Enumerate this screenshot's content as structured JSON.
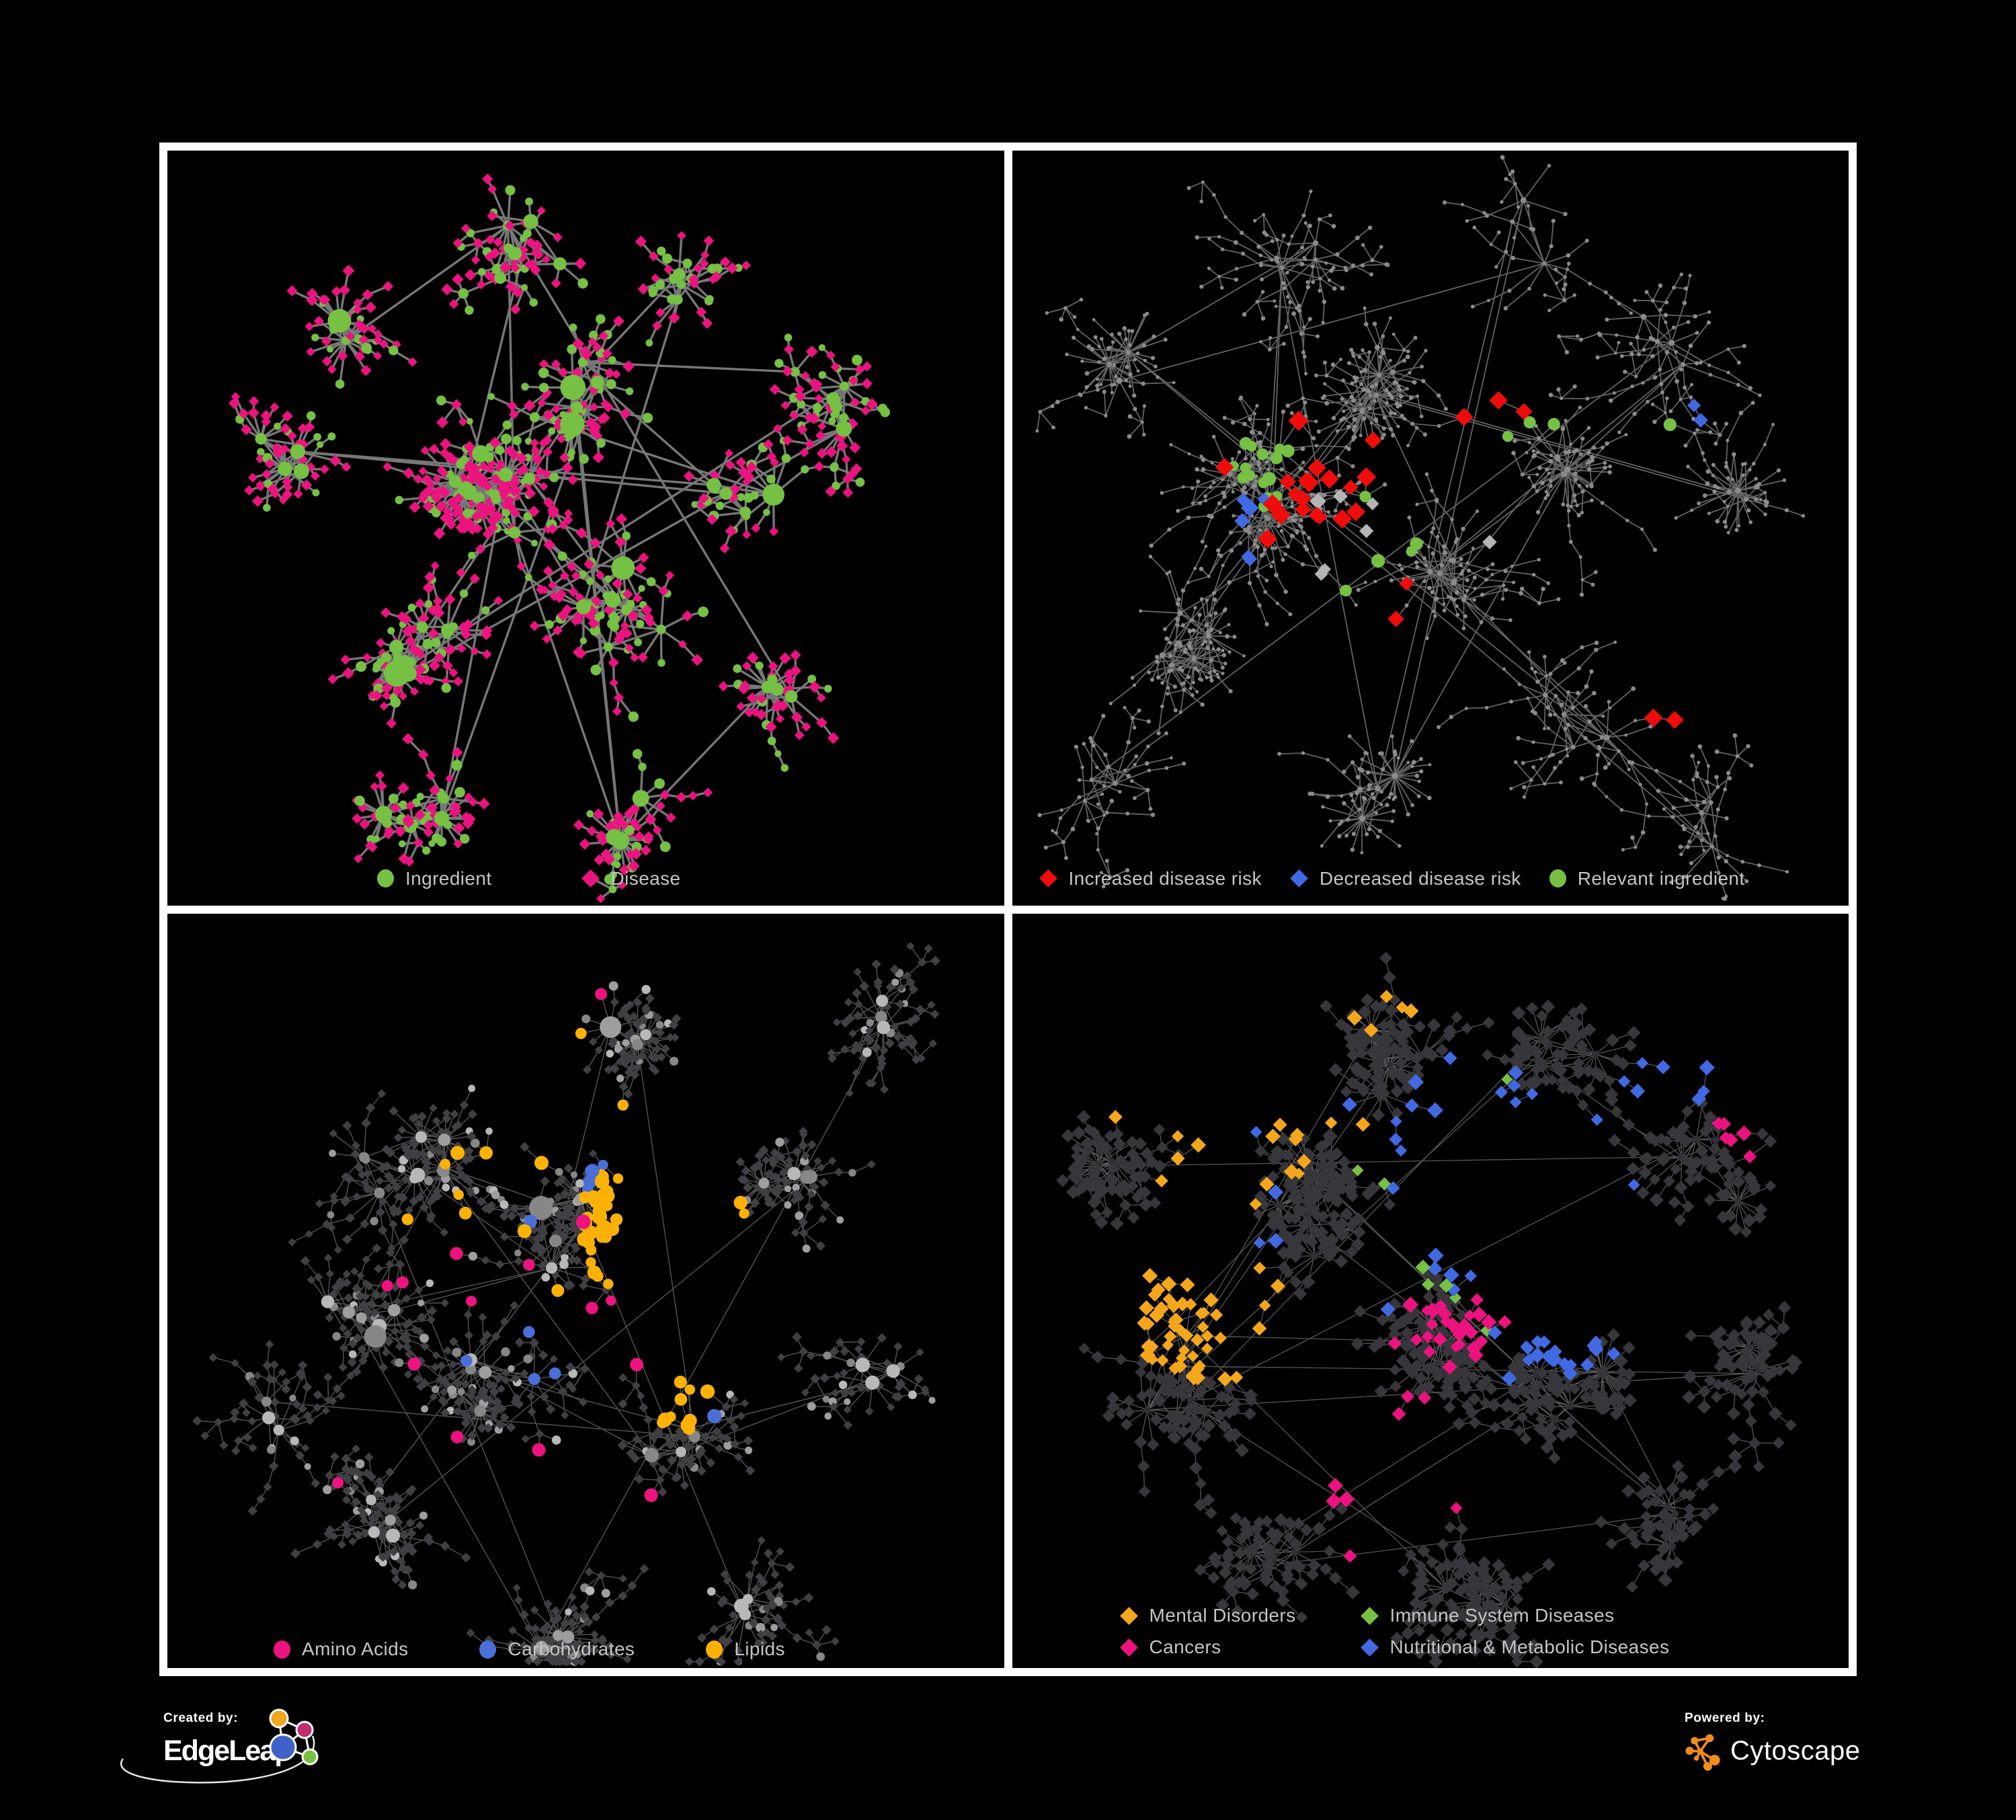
{
  "footer": {
    "created_by_label": "Created by:",
    "created_by_brand": "EdgeLeap",
    "powered_by_label": "Powered by:",
    "powered_by_brand": "Cytoscape",
    "cytoscape_orange": "#ef8c1e",
    "edgeleap_colors": {
      "orange": "#f2a71f",
      "magenta": "#bf2d6e",
      "blue": "#3f62c8",
      "green": "#7ac143"
    }
  },
  "chart_data": {
    "type": "network",
    "layout": "2x2 panel grid of node-link network views, black panels inside a white frame, legend at bottom of each panel",
    "panels": [
      {
        "id": "ingredient-disease",
        "legend": [
          {
            "label": "Ingredient",
            "shape": "circle",
            "color": "#76c043"
          },
          {
            "label": "Disease",
            "shape": "diamond",
            "color": "#ec1380"
          }
        ],
        "palette": {
          "ingredient": "#76c043",
          "disease": "#ec1380",
          "edge": "#7d7d7d"
        }
      },
      {
        "id": "disease-risk",
        "legend": [
          {
            "label": "Increased disease risk",
            "shape": "diamond",
            "color": "#f00c0c"
          },
          {
            "label": "Decreased disease risk",
            "shape": "diamond",
            "color": "#4169e1"
          },
          {
            "label": "Relevant ingredient",
            "shape": "circle",
            "color": "#76c043"
          }
        ],
        "palette": {
          "base": "#8b8b8b",
          "increased": "#f00c0c",
          "decreased": "#4169e1",
          "relevant": "#76c043",
          "neutral": "#b5b5b5",
          "edge": "#6e6e6e"
        }
      },
      {
        "id": "nutrient-classes",
        "legend": [
          {
            "label": "Amino Acids",
            "shape": "circle",
            "color": "#ec1380"
          },
          {
            "label": "Carbohydrates",
            "shape": "circle",
            "color": "#4a6fd9"
          },
          {
            "label": "Lipids",
            "shape": "circle",
            "color": "#fcb105"
          }
        ],
        "palette": {
          "hub": [
            "#b8b8b8",
            "#9e9e9e",
            "#878787"
          ],
          "leaf": "#3f3f44",
          "amino": "#ec1380",
          "carbs": "#4a6fd9",
          "lipids": "#fcb105",
          "edge": "#5e5e5e"
        }
      },
      {
        "id": "disease-categories",
        "legend": [
          {
            "label": "Mental Disorders",
            "shape": "diamond",
            "color": "#f4a71b"
          },
          {
            "label": "Immune System Diseases",
            "shape": "diamond",
            "color": "#76c043"
          },
          {
            "label": "Cancers",
            "shape": "diamond",
            "color": "#ec1380"
          },
          {
            "label": "Nutritional & Metabolic Diseases",
            "shape": "diamond",
            "color": "#4169e1"
          }
        ],
        "palette": {
          "hub": "#2f2f34",
          "leaf": "#36363b",
          "mental": "#f4a71b",
          "immune": "#76c043",
          "cancers": "#ec1380",
          "nutritional": "#4169e1",
          "edge": "#8f8f93"
        }
      }
    ]
  }
}
